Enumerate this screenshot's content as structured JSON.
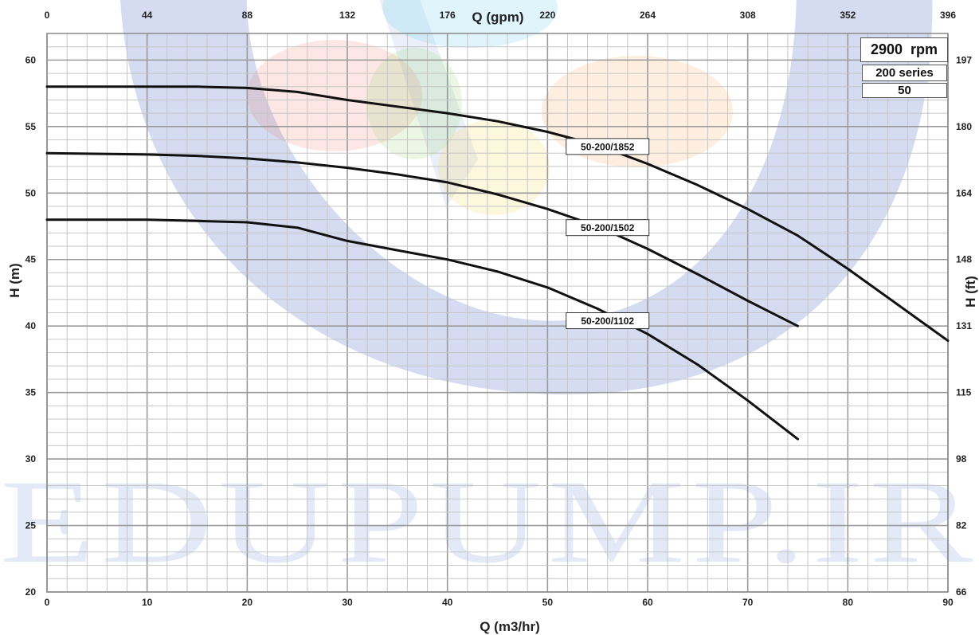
{
  "colors": {
    "curve": "#111111",
    "grid_major": "#9a9a9a",
    "grid_minor": "#c6c6c6",
    "watermark_blue": "#3f5fc4"
  },
  "watermark_text": "EDUPUMP.IR",
  "info": {
    "speed": "2900",
    "speed_unit": "rpm",
    "series": "200 series",
    "size": "50"
  },
  "chart_data": {
    "type": "line",
    "title": "",
    "xlabel": "Q (m3/hr)",
    "ylabel": "H (m)",
    "x2label": "Q (gpm)",
    "y2label": "H (ft)",
    "xlim": [
      0,
      90
    ],
    "ylim": [
      20,
      62
    ],
    "grid": true,
    "x_ticks": [
      0,
      10,
      20,
      30,
      40,
      50,
      60,
      70,
      80,
      90
    ],
    "y_ticks": [
      20,
      25,
      30,
      35,
      40,
      45,
      50,
      55,
      60
    ],
    "x2_ticks": [
      "0",
      "44",
      "88",
      "132",
      "176",
      "220",
      "264",
      "308",
      "352",
      "396"
    ],
    "y2_ticks": [
      {
        "label": "66",
        "at": 20
      },
      {
        "label": "82",
        "at": 25
      },
      {
        "label": "98",
        "at": 30
      },
      {
        "label": "115",
        "at": 35
      },
      {
        "label": "131",
        "at": 40
      },
      {
        "label": "148",
        "at": 45
      },
      {
        "label": "164",
        "at": 50
      },
      {
        "label": "180",
        "at": 55
      },
      {
        "label": "197",
        "at": 60
      }
    ],
    "series": [
      {
        "name": "50-200/1852",
        "label_at": [
          56,
          53.5
        ],
        "x": [
          0,
          10,
          15,
          20,
          25,
          30,
          35,
          40,
          45,
          50,
          55,
          60,
          65,
          70,
          75,
          80,
          85,
          90
        ],
        "y": [
          58,
          58,
          58,
          57.9,
          57.6,
          57,
          56.5,
          56,
          55.4,
          54.6,
          53.6,
          52.2,
          50.6,
          48.8,
          46.8,
          44.3,
          41.6,
          38.9
        ]
      },
      {
        "name": "50-200/1502",
        "label_at": [
          56,
          47.4
        ],
        "x": [
          0,
          10,
          15,
          20,
          25,
          30,
          35,
          40,
          45,
          50,
          55,
          60,
          65,
          70,
          75
        ],
        "y": [
          53,
          52.9,
          52.8,
          52.6,
          52.3,
          51.9,
          51.4,
          50.8,
          49.9,
          48.8,
          47.5,
          45.8,
          43.9,
          41.9,
          40
        ]
      },
      {
        "name": "50-200/1102",
        "label_at": [
          56,
          40.4
        ],
        "x": [
          0,
          10,
          15,
          20,
          25,
          30,
          35,
          40,
          45,
          50,
          55,
          60,
          65,
          70,
          75
        ],
        "y": [
          48,
          48,
          47.9,
          47.8,
          47.4,
          46.4,
          45.7,
          45,
          44.1,
          42.9,
          41.3,
          39.4,
          37.1,
          34.4,
          31.5
        ]
      }
    ]
  }
}
